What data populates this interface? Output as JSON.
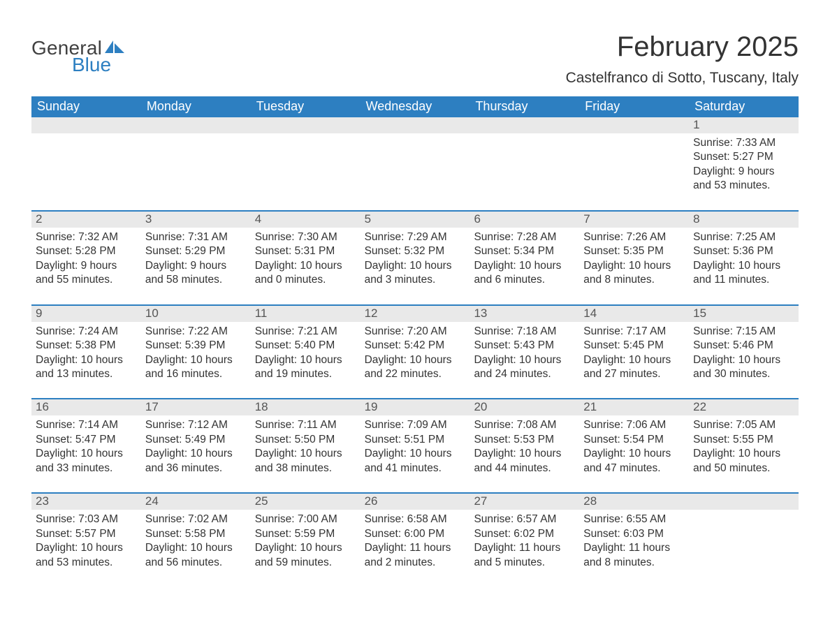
{
  "logo": {
    "word1": "General",
    "word2": "Blue"
  },
  "title": "February 2025",
  "location": "Castelfranco di Sotto, Tuscany, Italy",
  "colors": {
    "header_bg": "#2d7fc1",
    "header_text": "#ffffff",
    "daynum_bg": "#e9e9e9",
    "daynum_text": "#555555",
    "body_text": "#333333",
    "logo_gray": "#404040",
    "logo_blue": "#2d7fc1",
    "page_bg": "#ffffff",
    "row_border": "#2d7fc1"
  },
  "fonts": {
    "title_size_pt": 30,
    "location_size_pt": 16,
    "dow_size_pt": 14,
    "daynum_size_pt": 13,
    "body_size_pt": 12
  },
  "days_of_week": [
    "Sunday",
    "Monday",
    "Tuesday",
    "Wednesday",
    "Thursday",
    "Friday",
    "Saturday"
  ],
  "weeks": [
    [
      null,
      null,
      null,
      null,
      null,
      null,
      {
        "n": "1",
        "sunrise": "7:33 AM",
        "sunset": "5:27 PM",
        "dl1": "Daylight: 9 hours",
        "dl2": "and 53 minutes."
      }
    ],
    [
      {
        "n": "2",
        "sunrise": "7:32 AM",
        "sunset": "5:28 PM",
        "dl1": "Daylight: 9 hours",
        "dl2": "and 55 minutes."
      },
      {
        "n": "3",
        "sunrise": "7:31 AM",
        "sunset": "5:29 PM",
        "dl1": "Daylight: 9 hours",
        "dl2": "and 58 minutes."
      },
      {
        "n": "4",
        "sunrise": "7:30 AM",
        "sunset": "5:31 PM",
        "dl1": "Daylight: 10 hours",
        "dl2": "and 0 minutes."
      },
      {
        "n": "5",
        "sunrise": "7:29 AM",
        "sunset": "5:32 PM",
        "dl1": "Daylight: 10 hours",
        "dl2": "and 3 minutes."
      },
      {
        "n": "6",
        "sunrise": "7:28 AM",
        "sunset": "5:34 PM",
        "dl1": "Daylight: 10 hours",
        "dl2": "and 6 minutes."
      },
      {
        "n": "7",
        "sunrise": "7:26 AM",
        "sunset": "5:35 PM",
        "dl1": "Daylight: 10 hours",
        "dl2": "and 8 minutes."
      },
      {
        "n": "8",
        "sunrise": "7:25 AM",
        "sunset": "5:36 PM",
        "dl1": "Daylight: 10 hours",
        "dl2": "and 11 minutes."
      }
    ],
    [
      {
        "n": "9",
        "sunrise": "7:24 AM",
        "sunset": "5:38 PM",
        "dl1": "Daylight: 10 hours",
        "dl2": "and 13 minutes."
      },
      {
        "n": "10",
        "sunrise": "7:22 AM",
        "sunset": "5:39 PM",
        "dl1": "Daylight: 10 hours",
        "dl2": "and 16 minutes."
      },
      {
        "n": "11",
        "sunrise": "7:21 AM",
        "sunset": "5:40 PM",
        "dl1": "Daylight: 10 hours",
        "dl2": "and 19 minutes."
      },
      {
        "n": "12",
        "sunrise": "7:20 AM",
        "sunset": "5:42 PM",
        "dl1": "Daylight: 10 hours",
        "dl2": "and 22 minutes."
      },
      {
        "n": "13",
        "sunrise": "7:18 AM",
        "sunset": "5:43 PM",
        "dl1": "Daylight: 10 hours",
        "dl2": "and 24 minutes."
      },
      {
        "n": "14",
        "sunrise": "7:17 AM",
        "sunset": "5:45 PM",
        "dl1": "Daylight: 10 hours",
        "dl2": "and 27 minutes."
      },
      {
        "n": "15",
        "sunrise": "7:15 AM",
        "sunset": "5:46 PM",
        "dl1": "Daylight: 10 hours",
        "dl2": "and 30 minutes."
      }
    ],
    [
      {
        "n": "16",
        "sunrise": "7:14 AM",
        "sunset": "5:47 PM",
        "dl1": "Daylight: 10 hours",
        "dl2": "and 33 minutes."
      },
      {
        "n": "17",
        "sunrise": "7:12 AM",
        "sunset": "5:49 PM",
        "dl1": "Daylight: 10 hours",
        "dl2": "and 36 minutes."
      },
      {
        "n": "18",
        "sunrise": "7:11 AM",
        "sunset": "5:50 PM",
        "dl1": "Daylight: 10 hours",
        "dl2": "and 38 minutes."
      },
      {
        "n": "19",
        "sunrise": "7:09 AM",
        "sunset": "5:51 PM",
        "dl1": "Daylight: 10 hours",
        "dl2": "and 41 minutes."
      },
      {
        "n": "20",
        "sunrise": "7:08 AM",
        "sunset": "5:53 PM",
        "dl1": "Daylight: 10 hours",
        "dl2": "and 44 minutes."
      },
      {
        "n": "21",
        "sunrise": "7:06 AM",
        "sunset": "5:54 PM",
        "dl1": "Daylight: 10 hours",
        "dl2": "and 47 minutes."
      },
      {
        "n": "22",
        "sunrise": "7:05 AM",
        "sunset": "5:55 PM",
        "dl1": "Daylight: 10 hours",
        "dl2": "and 50 minutes."
      }
    ],
    [
      {
        "n": "23",
        "sunrise": "7:03 AM",
        "sunset": "5:57 PM",
        "dl1": "Daylight: 10 hours",
        "dl2": "and 53 minutes."
      },
      {
        "n": "24",
        "sunrise": "7:02 AM",
        "sunset": "5:58 PM",
        "dl1": "Daylight: 10 hours",
        "dl2": "and 56 minutes."
      },
      {
        "n": "25",
        "sunrise": "7:00 AM",
        "sunset": "5:59 PM",
        "dl1": "Daylight: 10 hours",
        "dl2": "and 59 minutes."
      },
      {
        "n": "26",
        "sunrise": "6:58 AM",
        "sunset": "6:00 PM",
        "dl1": "Daylight: 11 hours",
        "dl2": "and 2 minutes."
      },
      {
        "n": "27",
        "sunrise": "6:57 AM",
        "sunset": "6:02 PM",
        "dl1": "Daylight: 11 hours",
        "dl2": "and 5 minutes."
      },
      {
        "n": "28",
        "sunrise": "6:55 AM",
        "sunset": "6:03 PM",
        "dl1": "Daylight: 11 hours",
        "dl2": "and 8 minutes."
      },
      null
    ]
  ],
  "labels": {
    "sunrise_prefix": "Sunrise: ",
    "sunset_prefix": "Sunset: "
  }
}
